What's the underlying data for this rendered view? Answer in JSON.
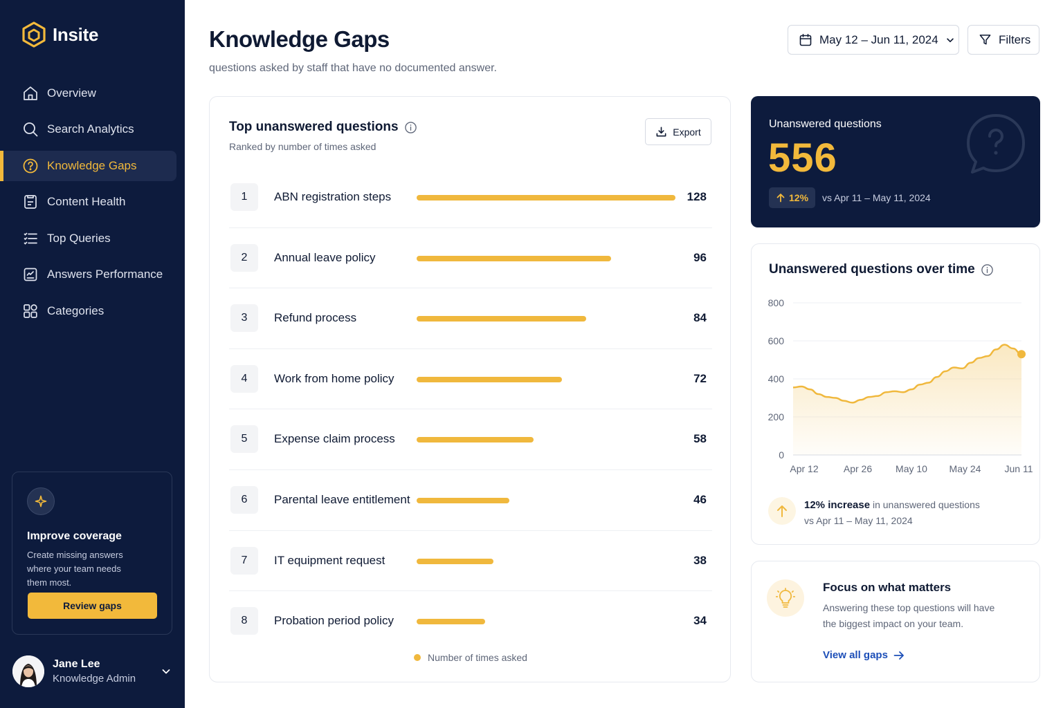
{
  "app": {
    "brand": "Insite"
  },
  "sidebar": {
    "items": [
      {
        "label": "Overview",
        "icon": "home-icon"
      },
      {
        "label": "Search Analytics",
        "icon": "search-icon"
      },
      {
        "label": "Knowledge Gaps",
        "icon": "question-circle-icon",
        "active": true
      },
      {
        "label": "Content Health",
        "icon": "document-icon"
      },
      {
        "label": "Top Queries",
        "icon": "list-icon"
      },
      {
        "label": "Answers Performance",
        "icon": "chart-doc-icon"
      },
      {
        "label": "Categories",
        "icon": "grid-icon"
      }
    ],
    "promo": {
      "title": "Improve coverage",
      "text": "Create missing answers where your team needs them most.",
      "button": "Review gaps"
    },
    "user": {
      "name": "Jane Lee",
      "role": "Knowledge Admin"
    }
  },
  "header": {
    "title": "Knowledge Gaps",
    "subtitle": "questions asked by staff that have no documented answer.",
    "date_range": "May 12 – Jun 11, 2024",
    "filters_label": "Filters"
  },
  "questions_card": {
    "title": "Top unanswered questions",
    "subtitle": "Ranked by number of times asked",
    "export_label": "Export",
    "legend": "Number of times asked"
  },
  "chart_data": [
    {
      "type": "bar",
      "categories": [
        "ABN registration steps",
        "Annual leave policy",
        "Refund process",
        "Work from home policy",
        "Expense claim process",
        "Parental leave entitlement",
        "IT equipment request",
        "Probation period policy"
      ],
      "ranks": [
        "1",
        "2",
        "3",
        "4",
        "5",
        "6",
        "7",
        "8"
      ],
      "values": [
        128,
        96,
        84,
        72,
        58,
        46,
        38,
        34
      ],
      "title": "Top unanswered questions",
      "legend": [
        "Number of times asked"
      ]
    },
    {
      "type": "area",
      "title": "Unanswered questions over time",
      "x_ticks": [
        "Apr 12",
        "Apr 26",
        "May 10",
        "May 24",
        "Jun 11"
      ],
      "y_ticks": [
        "0",
        "200",
        "400",
        "600",
        "800"
      ],
      "ylim": [
        0,
        800
      ],
      "grid": true,
      "series": [
        {
          "values": [
            355,
            360,
            345,
            320,
            305,
            300,
            285,
            275,
            290,
            305,
            310,
            330,
            335,
            330,
            345,
            370,
            380,
            410,
            440,
            460,
            455,
            485,
            510,
            520,
            555,
            580,
            560,
            530
          ]
        }
      ]
    }
  ],
  "kpi": {
    "label": "Unanswered questions",
    "value": "556",
    "delta": "12%",
    "compare": "vs Apr 11 – May 11, 2024"
  },
  "trend_card": {
    "note_strong": "12% increase",
    "note_rest": " in unanswered questions",
    "note_compare": "vs Apr 11 – May 11, 2024"
  },
  "focus_card": {
    "title": "Focus on what matters",
    "text": "Answering these top questions will have the biggest impact on your team.",
    "link": "View all gaps"
  },
  "colors": {
    "sidebar_bg": "#0d1b3d",
    "accent": "#f2b93b",
    "bar": "#f0b83d",
    "link": "#1d4fb8"
  }
}
